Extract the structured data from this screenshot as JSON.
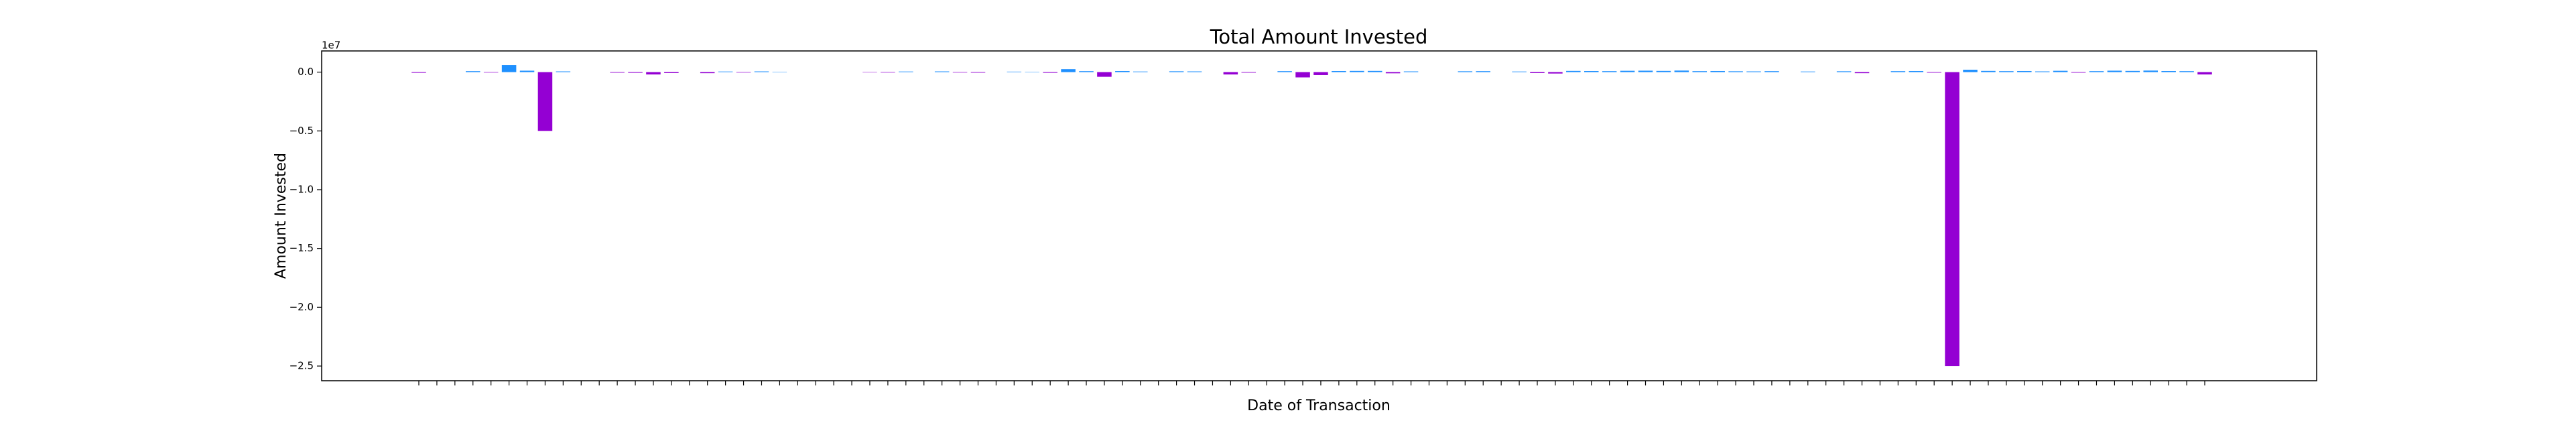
{
  "chart_data": {
    "type": "bar",
    "title": "Total Amount Invested",
    "x_label": "Date of Transaction",
    "y_label": "Amount Invested",
    "y_offset_label": "1e7",
    "colors": {
      "negative": "#9400d3",
      "positive": "#1e90ff"
    },
    "categories": [
      null,
      null,
      null,
      null,
      null,
      null,
      null,
      null,
      null,
      null,
      null,
      null,
      null,
      null,
      null,
      null,
      null,
      null,
      null,
      null,
      null,
      null,
      null,
      null,
      null,
      null,
      null,
      null,
      null,
      null,
      null,
      null,
      null,
      null,
      null,
      null,
      null,
      null,
      null,
      null,
      null,
      null,
      null,
      null,
      null,
      null,
      null,
      null,
      null,
      null,
      null,
      null,
      null,
      null,
      null,
      null,
      null,
      null,
      null,
      null,
      null,
      null,
      null,
      null,
      null,
      null,
      null,
      null,
      null,
      null,
      null,
      null,
      null,
      null,
      null,
      null,
      null,
      null,
      null,
      null,
      null,
      null,
      null,
      null,
      null,
      null,
      null,
      null,
      null,
      null,
      null,
      null,
      null,
      null,
      null,
      null,
      null,
      null,
      null,
      null
    ],
    "values": [
      -60000,
      0,
      0,
      80000,
      -40000,
      600000,
      120000,
      -5000000,
      60000,
      0,
      0,
      -50000,
      -60000,
      -200000,
      -80000,
      0,
      -90000,
      50000,
      -40000,
      60000,
      30000,
      0,
      0,
      0,
      0,
      -30000,
      -40000,
      50000,
      0,
      60000,
      -40000,
      -50000,
      0,
      40000,
      30000,
      -60000,
      250000,
      80000,
      -400000,
      90000,
      50000,
      0,
      70000,
      60000,
      0,
      -200000,
      -50000,
      0,
      80000,
      -450000,
      -250000,
      90000,
      100000,
      100000,
      -100000,
      60000,
      0,
      0,
      70000,
      80000,
      0,
      50000,
      -80000,
      -120000,
      100000,
      90000,
      80000,
      110000,
      120000,
      100000,
      130000,
      80000,
      90000,
      70000,
      60000,
      80000,
      0,
      50000,
      0,
      70000,
      -90000,
      0,
      80000,
      90000,
      -50000,
      -25000000,
      200000,
      100000,
      80000,
      90000,
      60000,
      110000,
      -50000,
      80000,
      120000,
      100000,
      130000,
      90000,
      80000,
      -200000
    ],
    "ylim": [
      -26250000,
      1800000
    ],
    "yticks": [
      {
        "value": 0,
        "label": "0.0"
      },
      {
        "value": -5000000,
        "label": "−0.5"
      },
      {
        "value": -10000000,
        "label": "−1.0"
      },
      {
        "value": -15000000,
        "label": "−1.5"
      },
      {
        "value": -20000000,
        "label": "−2.0"
      },
      {
        "value": -25000000,
        "label": "−2.5"
      }
    ]
  }
}
